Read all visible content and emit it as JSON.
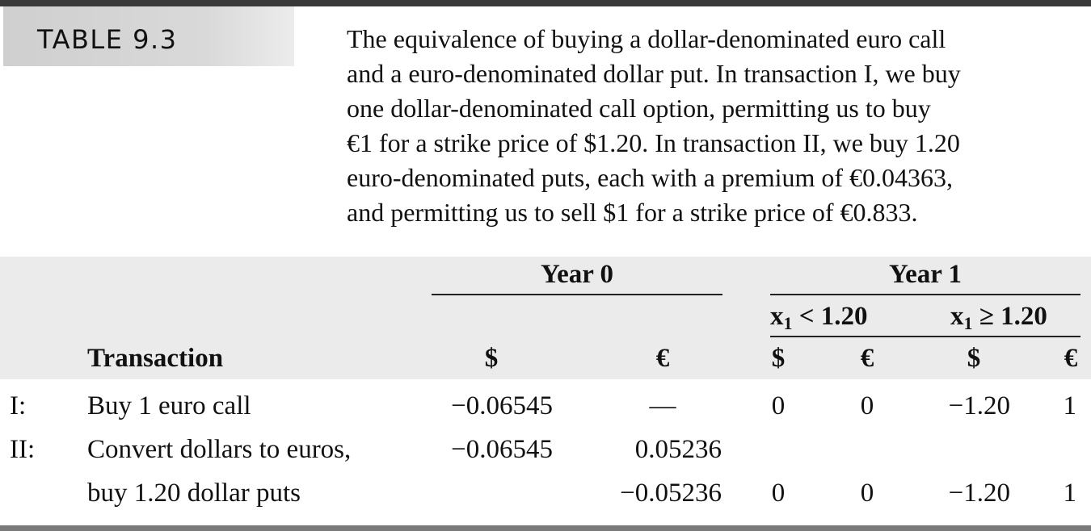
{
  "table_label": "TABLE 9.3",
  "caption_lines": [
    "The equivalence of buying a dollar-denominated euro call",
    "and a euro-denominated dollar put. In transaction I, we buy",
    "one dollar-denominated call option, permitting us to buy",
    "€1 for a strike price of $1.20. In transaction II, we buy 1.20",
    "euro-denominated puts, each with a premium of €0.04363,",
    "and permitting us to sell $1 for a strike price of €0.833."
  ],
  "headers": {
    "year0": "Year 0",
    "year1": "Year 1",
    "cond1_var": "x",
    "cond1_sub": "1",
    "cond1_rest": " < 1.20",
    "cond2_var": "x",
    "cond2_sub": "1",
    "cond2_rest": " ≥ 1.20",
    "transaction": "Transaction",
    "col_y0_dollar": "$",
    "col_y0_euro": "€",
    "col_c1_dollar": "$",
    "col_c1_euro": "€",
    "col_c2_dollar": "$",
    "col_c2_euro": "€"
  },
  "rows": [
    {
      "id": "I:",
      "transaction": "Buy 1 euro call",
      "y0_dollar": "−0.06545",
      "y0_euro": "—",
      "c1_dollar": "0",
      "c1_euro": "0",
      "c2_dollar": "−1.20",
      "c2_euro": "1"
    },
    {
      "id": "II:",
      "transaction": "Convert dollars to euros,",
      "y0_dollar": "−0.06545",
      "y0_euro": "0.05236",
      "c1_dollar": "",
      "c1_euro": "",
      "c2_dollar": "",
      "c2_euro": ""
    },
    {
      "id": "",
      "transaction": "buy 1.20 dollar puts",
      "y0_dollar": "",
      "y0_euro": "−0.05236",
      "c1_dollar": "0",
      "c1_euro": "0",
      "c2_dollar": "−1.20",
      "c2_euro": "1"
    }
  ]
}
